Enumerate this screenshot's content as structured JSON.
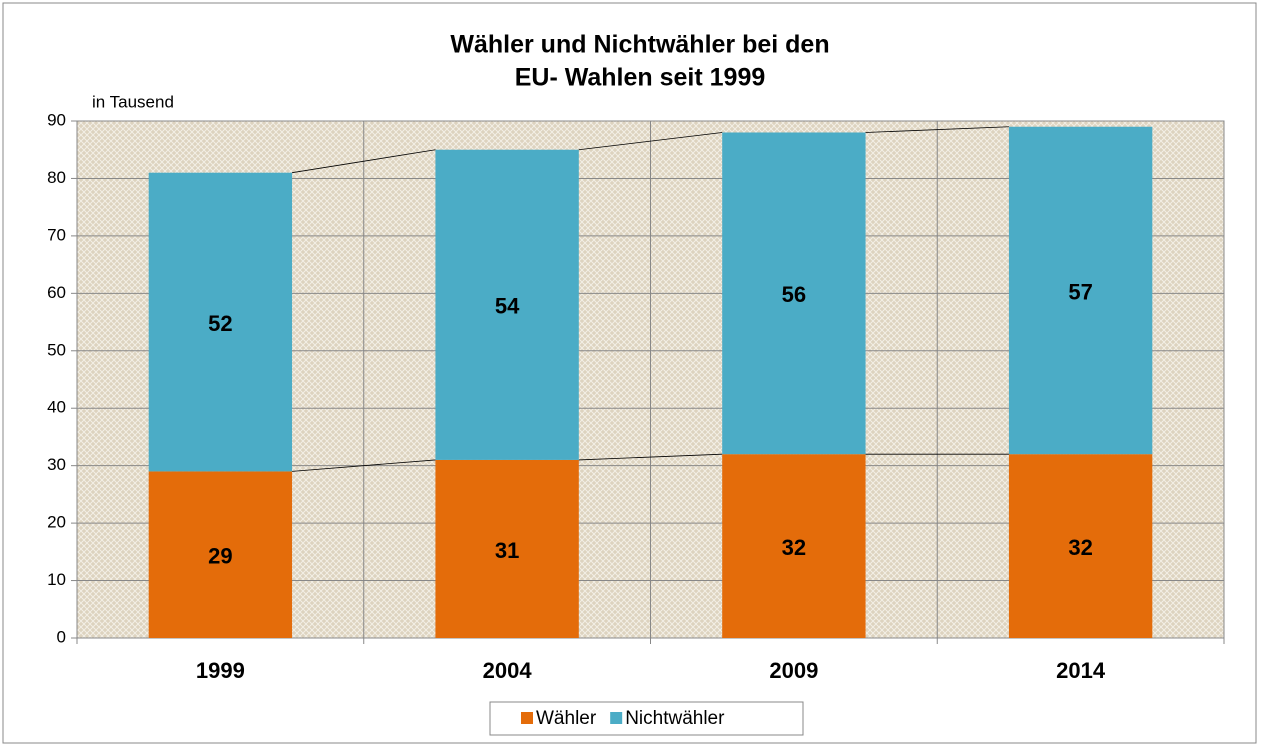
{
  "chart_data": {
    "type": "stacked_bar",
    "title": [
      "Wähler und Nichtwähler bei den",
      "EU- Wahlen seit 1999"
    ],
    "y_label": "in Tausend",
    "categories": [
      "1999",
      "2004",
      "2009",
      "2014"
    ],
    "series": [
      {
        "name": "Wähler",
        "color": "#e46c0a",
        "values": [
          29,
          31,
          32,
          32
        ]
      },
      {
        "name": "Nichtwähler",
        "color": "#4bacc6",
        "values": [
          52,
          54,
          56,
          57
        ]
      }
    ],
    "ylim": [
      0,
      90
    ],
    "yticks": [
      0,
      10,
      20,
      30,
      40,
      50,
      60,
      70,
      80,
      90
    ],
    "grid": true,
    "legend": "bottom"
  }
}
